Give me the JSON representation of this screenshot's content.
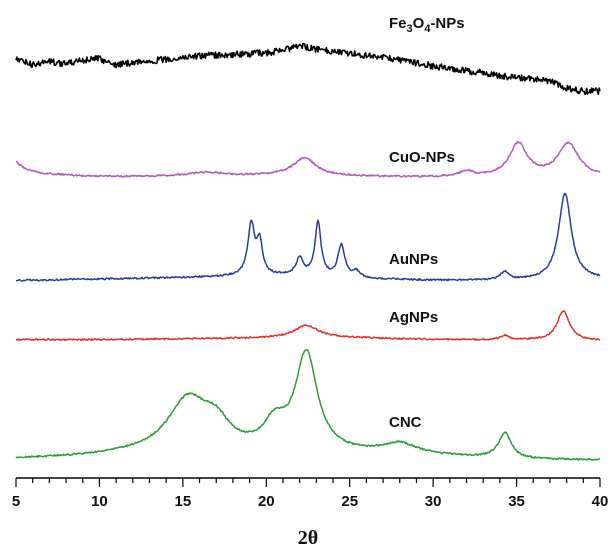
{
  "chart_data": {
    "type": "line",
    "xlabel": "2θ",
    "xlim": [
      5,
      40
    ],
    "x_ticks": [
      "5",
      "10",
      "15",
      "20",
      "25",
      "30",
      "35",
      "40"
    ],
    "minor_tick_step": 1,
    "y_axis_visible": false,
    "grid": false,
    "series": [
      {
        "name": "Fe3O4-NPs",
        "label_parts": [
          [
            "Fe",
            ""
          ],
          [
            "3",
            "sub"
          ],
          [
            "O",
            ""
          ],
          [
            "4",
            "sub"
          ],
          [
            "-NPs",
            ""
          ]
        ],
        "color": "#000000",
        "noise": 3.2,
        "points": [
          [
            5,
            0.72
          ],
          [
            6,
            0.62
          ],
          [
            7,
            0.68
          ],
          [
            8,
            0.63
          ],
          [
            9,
            0.7
          ],
          [
            10,
            0.72
          ],
          [
            11,
            0.62
          ],
          [
            12,
            0.66
          ],
          [
            14,
            0.71
          ],
          [
            16,
            0.77
          ],
          [
            18,
            0.79
          ],
          [
            20,
            0.82
          ],
          [
            21,
            0.86
          ],
          [
            22,
            0.93
          ],
          [
            22.5,
            0.91
          ],
          [
            23,
            0.88
          ],
          [
            24,
            0.85
          ],
          [
            26,
            0.78
          ],
          [
            28,
            0.7
          ],
          [
            30,
            0.6
          ],
          [
            32,
            0.52
          ],
          [
            34,
            0.44
          ],
          [
            35,
            0.4
          ],
          [
            36,
            0.38
          ],
          [
            36.5,
            0.39
          ],
          [
            37,
            0.34
          ],
          [
            38,
            0.24
          ],
          [
            39,
            0.18
          ],
          [
            40,
            0.18
          ]
        ]
      },
      {
        "name": "CuO-NPs",
        "color": "#b25bb8",
        "noise": 0.8,
        "base": [
          [
            5,
            0.8
          ],
          [
            5.5,
            0.62
          ],
          [
            6.5,
            0.48
          ],
          [
            9,
            0.4
          ],
          [
            12,
            0.38
          ],
          [
            18,
            0.38
          ],
          [
            21,
            0.42
          ],
          [
            26,
            0.38
          ],
          [
            30,
            0.36
          ],
          [
            33,
            0.36
          ],
          [
            36.5,
            0.36
          ],
          [
            40,
            0.36
          ]
        ],
        "peaks": [
          [
            16.5,
            1.5,
            0.12
          ],
          [
            22.3,
            0.8,
            0.5
          ],
          [
            32,
            0.5,
            0.15
          ],
          [
            35.1,
            0.65,
            0.95
          ],
          [
            38.1,
            0.75,
            0.95
          ]
        ]
      },
      {
        "name": "AuNPs",
        "color": "#2a3c9a",
        "noise": 0.8,
        "base": [
          [
            5,
            0.3
          ],
          [
            10,
            0.34
          ],
          [
            14,
            0.38
          ],
          [
            18,
            0.42
          ],
          [
            21,
            0.45
          ],
          [
            25,
            0.36
          ],
          [
            30,
            0.3
          ],
          [
            35,
            0.3
          ],
          [
            39,
            0.34
          ],
          [
            40,
            0.34
          ]
        ],
        "peaks": [
          [
            19.1,
            0.25,
            1.6
          ],
          [
            19.6,
            0.2,
            1.0
          ],
          [
            22,
            0.25,
            0.55
          ],
          [
            23.1,
            0.22,
            1.7
          ],
          [
            24.5,
            0.25,
            1.0
          ],
          [
            25.4,
            0.25,
            0.2
          ],
          [
            34.3,
            0.3,
            0.25
          ],
          [
            37.9,
            0.45,
            2.7
          ]
        ]
      },
      {
        "name": "AgNPs",
        "color": "#e0302a",
        "noise": 0.7,
        "base": [
          [
            5,
            0.3
          ],
          [
            10,
            0.3
          ],
          [
            20,
            0.35
          ],
          [
            25,
            0.36
          ],
          [
            30,
            0.3
          ],
          [
            36,
            0.28
          ],
          [
            40,
            0.26
          ]
        ],
        "peaks": [
          [
            22.4,
            0.9,
            0.45
          ],
          [
            34.3,
            0.3,
            0.15
          ],
          [
            37.8,
            0.45,
            1.05
          ]
        ]
      },
      {
        "name": "CNC",
        "color": "#2e9a3a",
        "noise": 0.8,
        "base": [
          [
            5,
            0.25
          ],
          [
            8,
            0.3
          ],
          [
            12,
            0.4
          ],
          [
            28,
            0.4
          ],
          [
            32,
            0.3
          ],
          [
            36,
            0.22
          ],
          [
            40,
            0.2
          ]
        ],
        "peaks": [
          [
            15.3,
            1.5,
            1.9
          ],
          [
            17,
            1.0,
            0.8
          ],
          [
            20.5,
            0.8,
            0.9
          ],
          [
            22.4,
            0.8,
            3.5
          ],
          [
            28,
            1.2,
            0.35
          ],
          [
            34.3,
            0.45,
            0.9
          ]
        ]
      }
    ]
  }
}
